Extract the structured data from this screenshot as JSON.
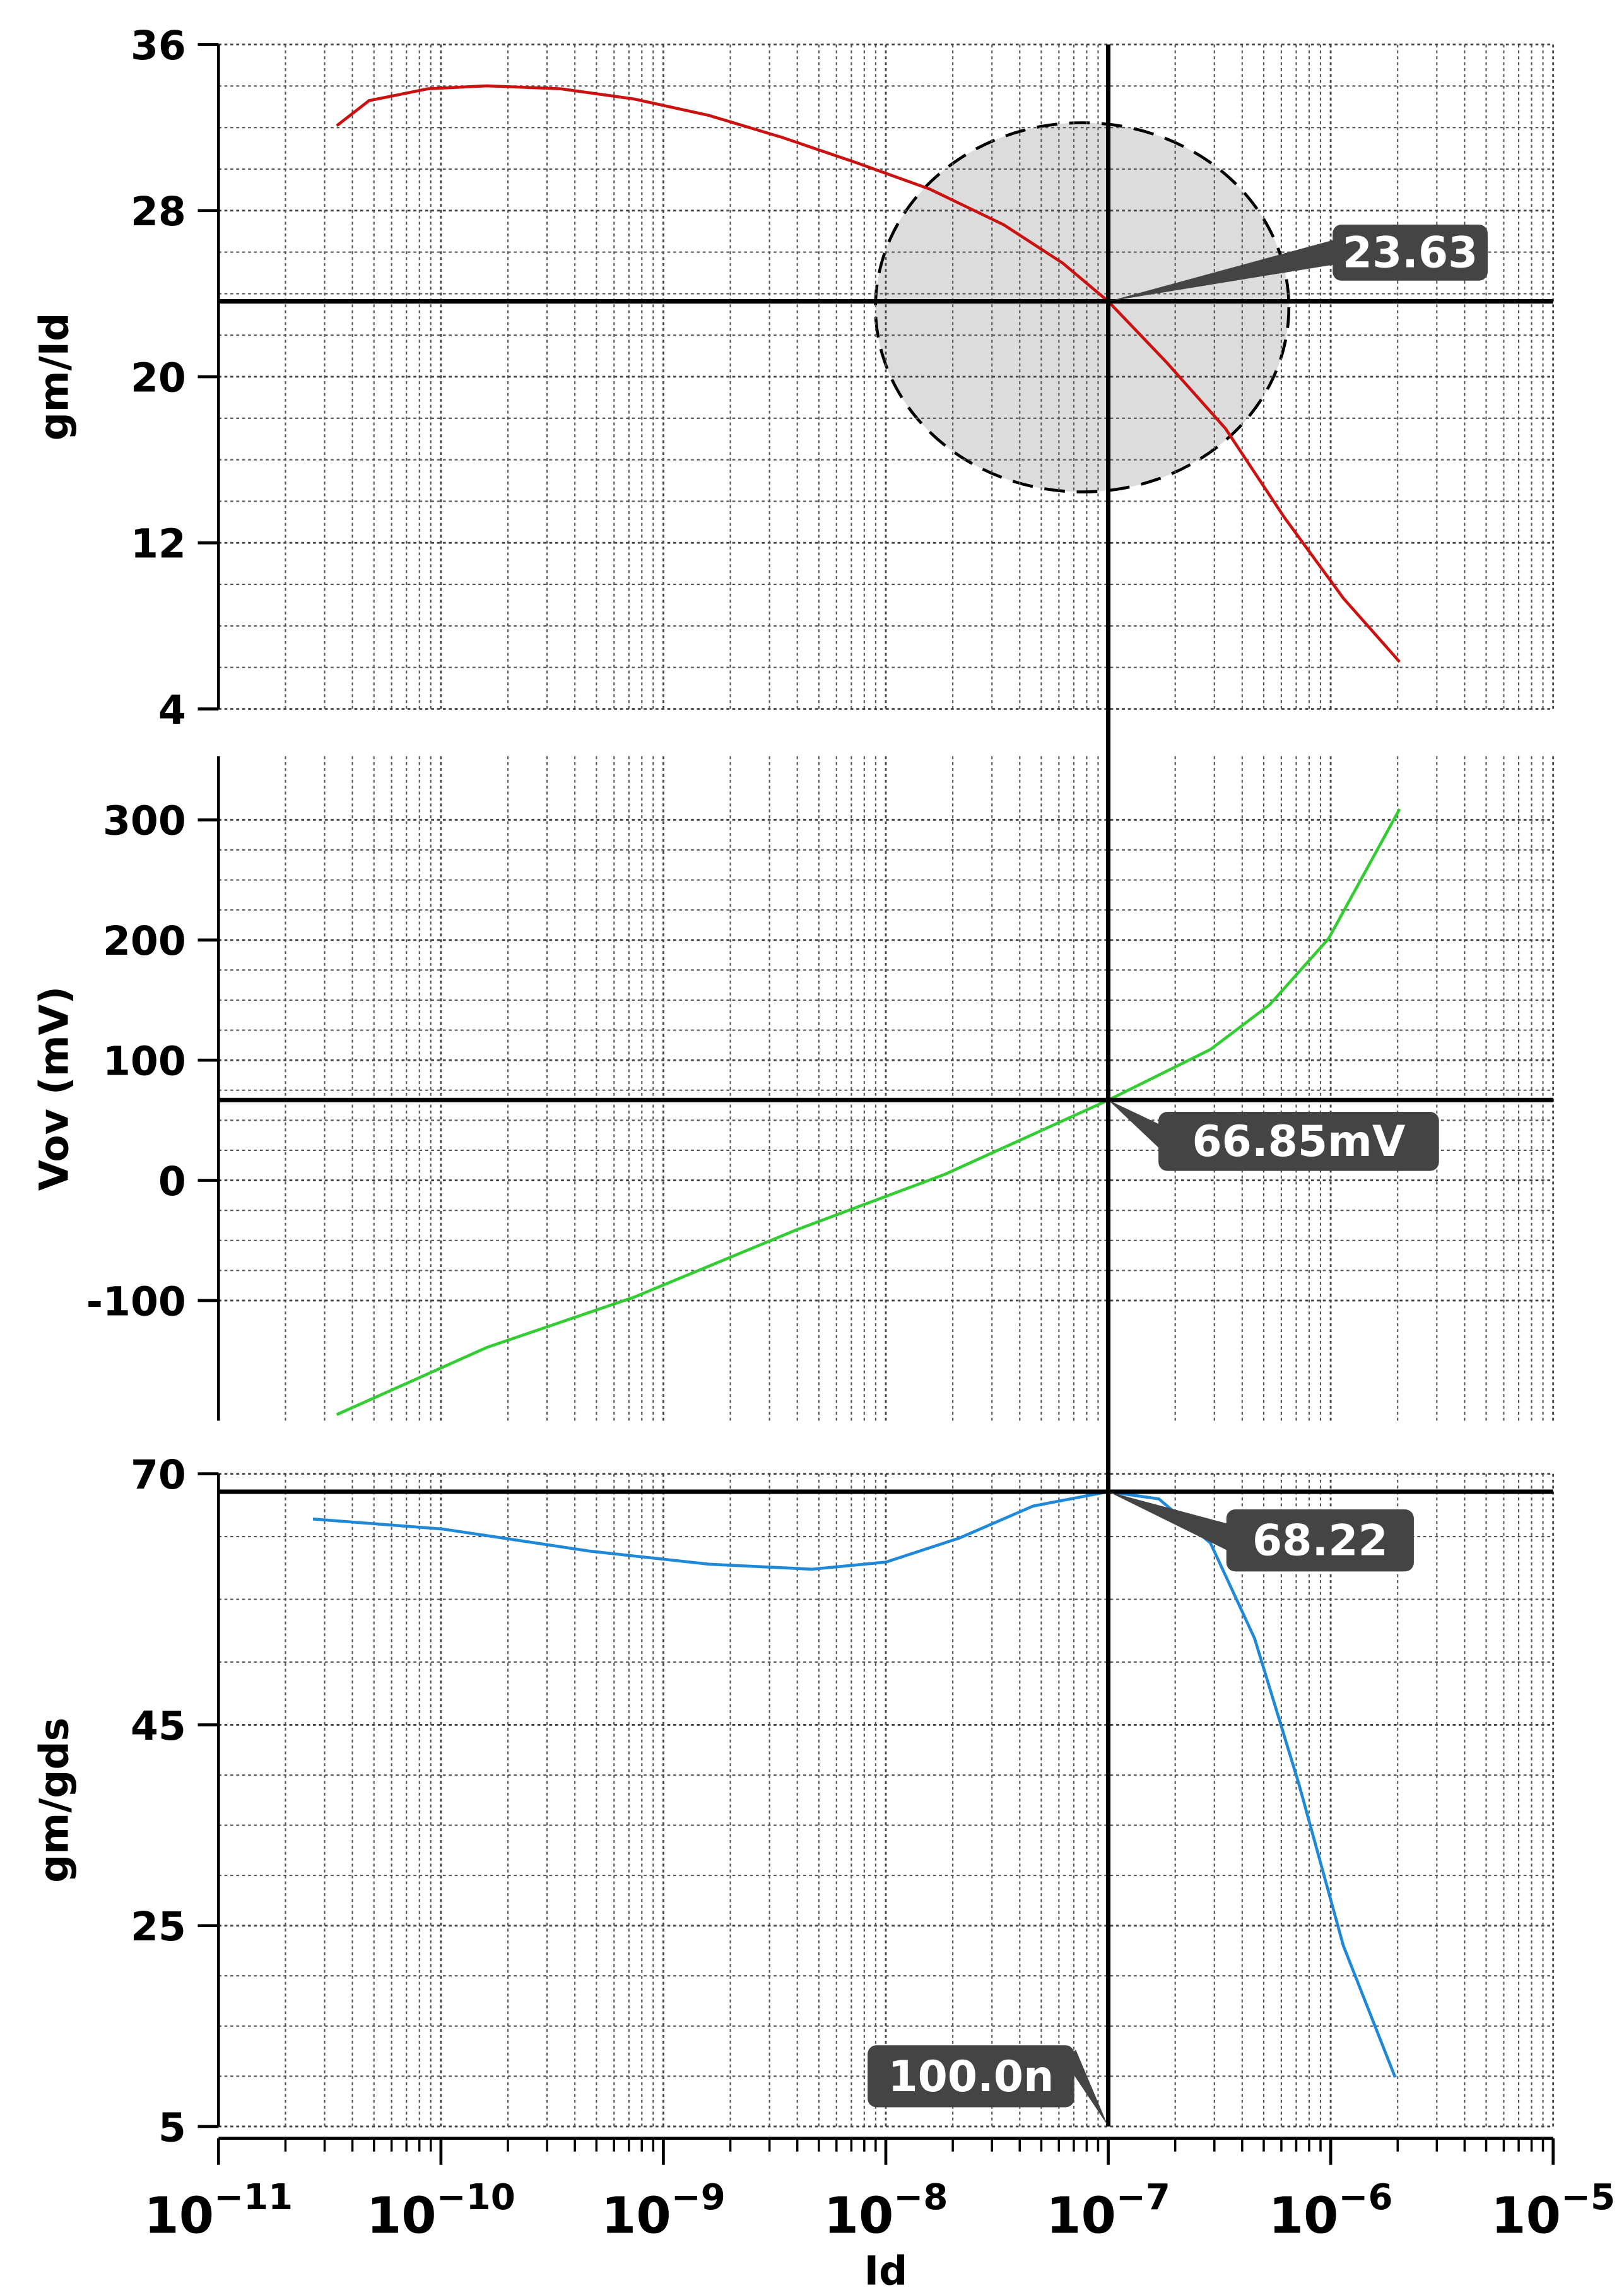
{
  "chart_data": [
    {
      "type": "line",
      "y_label": "gm/Id",
      "color": "#cc1111",
      "x": [
        3.4e-11,
        4.75e-11,
        8.75e-11,
        1.61e-10,
        3.46e-10,
        7.43e-10,
        1.6e-09,
        3.43e-09,
        7.36e-09,
        1.58e-08,
        3.39e-08,
        6.25e-08,
        1e-07,
        1.82e-07,
        3.36e-07,
        6.18e-07,
        1.14e-06,
        2.04e-06
      ],
      "values": [
        32.09,
        33.3,
        33.87,
        34.01,
        33.87,
        33.37,
        32.59,
        31.52,
        30.31,
        29.03,
        27.32,
        25.47,
        23.63,
        20.71,
        17.51,
        13.24,
        9.33,
        6.27
      ],
      "ylim": [
        4,
        36
      ],
      "yticks": [
        4,
        12,
        20,
        28,
        36
      ],
      "grid": true,
      "marker": {
        "y": 23.63,
        "label": "23.63"
      }
    },
    {
      "type": "line",
      "y_label": "Vov (mV)",
      "color": "#33cc33",
      "x": [
        3.4e-11,
        1.61e-10,
        7.43e-10,
        3.99e-09,
        1.84e-08,
        1e-07,
        2.88e-07,
        5.31e-07,
        9.77e-07,
        2.04e-06
      ],
      "values": [
        -195,
        -139,
        -97,
        -41,
        5,
        66.85,
        109,
        146,
        201,
        309
      ],
      "ylim": [
        -200,
        353
      ],
      "yticks": [
        -100,
        0,
        100,
        200,
        300
      ],
      "grid": true,
      "marker": {
        "y": 66.85,
        "label": "66.85mV"
      }
    },
    {
      "type": "line",
      "y_label": "gm/gds",
      "color": "#1f88d8",
      "x": [
        2.66e-11,
        1.02e-10,
        4.7e-10,
        1.6e-09,
        4.66e-09,
        1e-08,
        2.14e-08,
        4.6e-08,
        1e-07,
        1.69e-07,
        2.88e-07,
        4.55e-07,
        7.2e-07,
        1.14e-06,
        1.95e-06
      ],
      "values": [
        65.5,
        64.5,
        62.3,
        61.0,
        60.5,
        61.2,
        63.6,
        66.8,
        68.22,
        67.5,
        63.1,
        53.6,
        39.1,
        23.0,
        9.9
      ],
      "ylim": [
        5,
        70
      ],
      "yticks": [
        5,
        25,
        45,
        70
      ],
      "grid": true,
      "marker": {
        "y": 68.22,
        "label": "68.22"
      },
      "x_label": "Id",
      "xscale": "log",
      "xlim": [
        1e-11,
        1e-05
      ],
      "xticks": [
        {
          "value": 1e-11,
          "label": "10",
          "exponent": "−11"
        },
        {
          "value": 1e-10,
          "label": "10",
          "exponent": "−10"
        },
        {
          "value": 1e-09,
          "label": "10",
          "exponent": "−9"
        },
        {
          "value": 1e-08,
          "label": "10",
          "exponent": "−8"
        },
        {
          "value": 1e-07,
          "label": "10",
          "exponent": "−7"
        },
        {
          "value": 1e-06,
          "label": "10",
          "exponent": "−6"
        },
        {
          "value": 1e-05,
          "label": "10",
          "exponent": "−5"
        }
      ]
    }
  ],
  "cursor": {
    "x": 1e-07,
    "label": "100.0n"
  }
}
